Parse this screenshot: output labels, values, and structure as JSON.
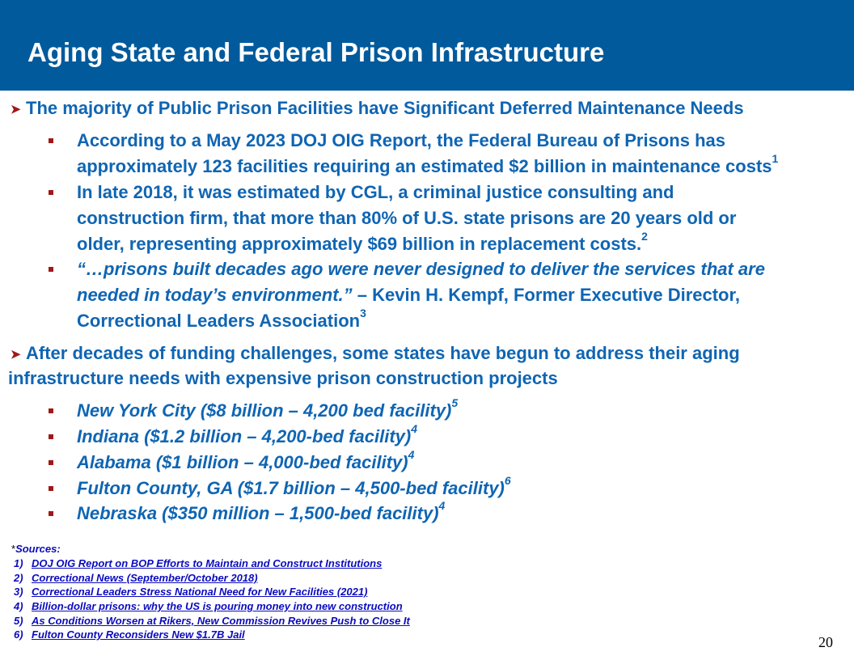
{
  "title": "Aging State and Federal Prison Infrastructure",
  "section1": {
    "heading": "The majority of Public Prison Facilities have Significant Deferred Maintenance Needs",
    "bullets": [
      {
        "lines": [
          "According to a May 2023 DOJ OIG Report, the Federal Bureau of Prisons has",
          "approximately 123 facilities requiring an estimated $2 billion in maintenance costs"
        ],
        "ref": "1"
      },
      {
        "lines": [
          "In late 2018, it was estimated by CGL, a criminal justice consulting and",
          "construction firm, that more than 80% of U.S. state prisons are 20 years old or",
          "older, representing approximately $69 billion in replacement costs."
        ],
        "ref": "2"
      },
      {
        "quote_line1": "“…prisons built decades ago were never designed to deliver the services that are",
        "quote_line2": "needed in today’s environment.”",
        "attribution_line2": " – Kevin H. Kempf, Former Executive Director,",
        "attribution_line3": "Correctional Leaders Association",
        "ref": "3"
      }
    ]
  },
  "section2": {
    "heading_line1": "After decades of funding challenges, some states have begun to address their aging",
    "heading_line2": "infrastructure needs with expensive prison construction projects",
    "bullets": [
      {
        "text": "New York City ($8 billion – 4,200 bed facility)",
        "ref": "5"
      },
      {
        "text": "Indiana ($1.2 billion – 4,200-bed facility)",
        "ref": "4"
      },
      {
        "text": "Alabama ($1 billion – 4,000-bed facility)",
        "ref": "4"
      },
      {
        "text": "Fulton County, GA ($1.7 billion – 4,500-bed facility)",
        "ref": "6"
      },
      {
        "text": "Nebraska ($350 million – 1,500-bed facility)",
        "ref": "4"
      }
    ]
  },
  "sources": {
    "label": "Sources:",
    "asterisk": "*",
    "items": [
      {
        "num": "1)",
        "text": "DOJ OIG Report on BOP Efforts to Maintain and Construct Institutions"
      },
      {
        "num": "2)",
        "text": "Correctional News (September/October 2018)"
      },
      {
        "num": "3)",
        "text": "Correctional Leaders Stress National Need for New Facilities (2021)"
      },
      {
        "num": "4)",
        "text": "Billion-dollar prisons: why the US is pouring money into new construction"
      },
      {
        "num": "5)",
        "text": "As Conditions Worsen at Rikers, New Commission Revives Push to Close It"
      },
      {
        "num": "6)",
        "text": "Fulton County Reconsiders New $1.7B Jail"
      }
    ]
  },
  "page_number": "20",
  "colors": {
    "header": "#005a9c",
    "text": "#0f65b3",
    "bullet": "#a01818",
    "link": "#0b0bbf"
  }
}
